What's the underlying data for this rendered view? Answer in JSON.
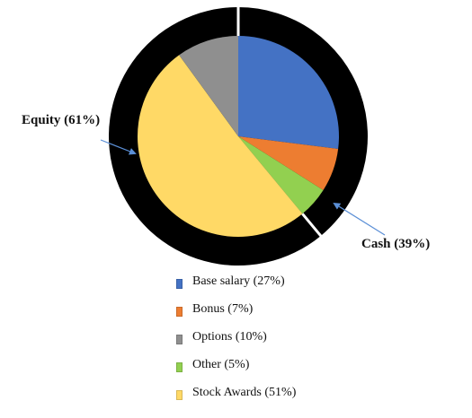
{
  "chart_data": {
    "type": "pie",
    "title": "",
    "inner": {
      "slices": [
        {
          "label": "Base salary (27%)",
          "value": 27,
          "color": "#4472C4"
        },
        {
          "label": "Bonus (7%)",
          "value": 7,
          "color": "#ED7D31"
        },
        {
          "label": "Other (5%)",
          "value": 5,
          "color": "#92D050"
        },
        {
          "label": "Stock Awards (51%)",
          "value": 51,
          "color": "#FFD966"
        },
        {
          "label": "Options (10%)",
          "value": 10,
          "color": "#8F8F8F"
        }
      ]
    },
    "outer": {
      "slices": [
        {
          "label": "Cash (39%)",
          "value": 39,
          "color": "#000000"
        },
        {
          "label": "Equity (61%)",
          "value": 61,
          "color": "#000000"
        }
      ]
    },
    "legend": [
      {
        "label": "Base salary (27%)",
        "color": "#4472C4"
      },
      {
        "label": "Bonus (7%)",
        "color": "#ED7D31"
      },
      {
        "label": "Options (10%)",
        "color": "#8F8F8F"
      },
      {
        "label": "Other (5%)",
        "color": "#92D050"
      },
      {
        "label": "Stock Awards (51%)",
        "color": "#FFD966"
      }
    ],
    "legend_position": "bottom",
    "annotations": [
      {
        "text": "Equity (61%)",
        "arrow_color": "#5B8FD6"
      },
      {
        "text": "Cash (39%)",
        "arrow_color": "#5B8FD6"
      }
    ]
  }
}
